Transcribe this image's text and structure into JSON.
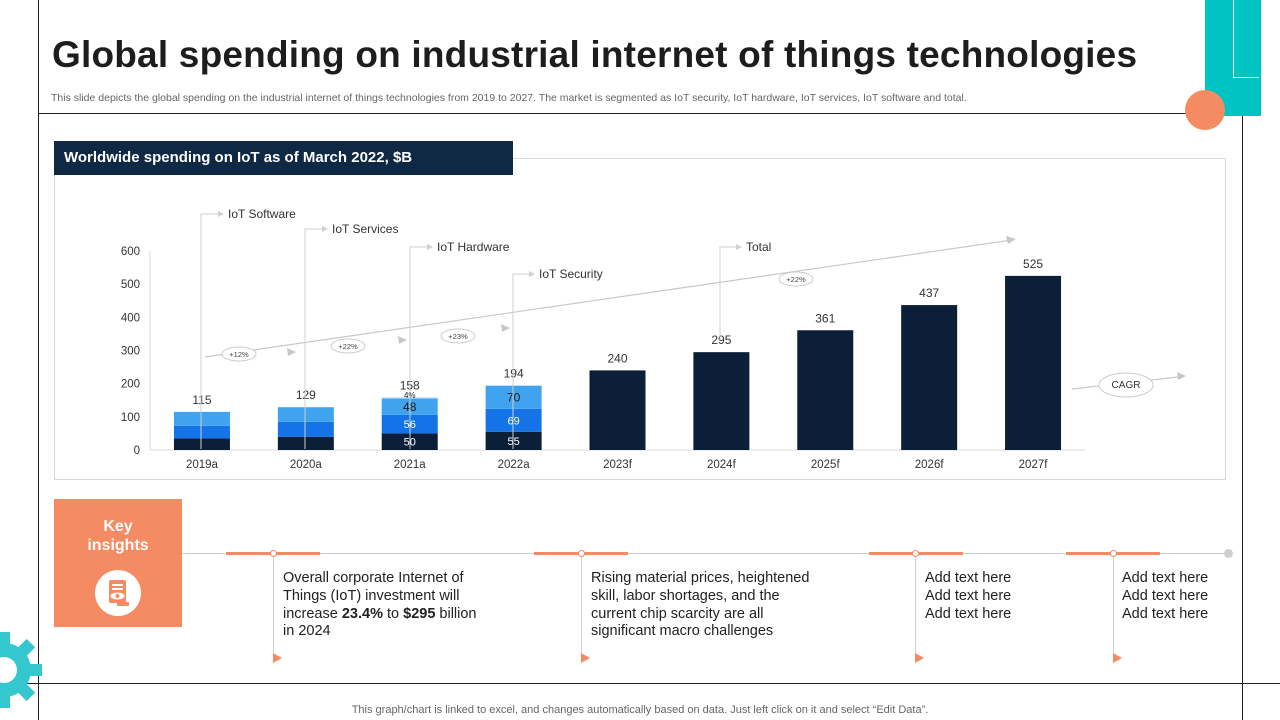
{
  "title": "Global spending on industrial internet of things technologies",
  "subtitle": "This slide depicts the global spending on the industrial internet of things technologies from 2019 to 2027. The market is segmented as IoT security, IoT hardware, IoT services, IoT software and total.",
  "chart_header": "Worldwide spending on IoT as of March 2022, $B",
  "chart_data": {
    "type": "bar",
    "title": "Worldwide spending on IoT as of March 2022, $B",
    "categories": [
      "2019a",
      "2020a",
      "2021a",
      "2022a",
      "2023f",
      "2024f",
      "2025f",
      "2026f",
      "2027f"
    ],
    "ylim": [
      0,
      600
    ],
    "yticks": [
      0,
      100,
      200,
      300,
      400,
      500,
      600
    ],
    "totals": [
      115,
      129,
      158,
      194,
      240,
      295,
      361,
      437,
      525
    ],
    "stacked_segments": [
      {
        "security": 35,
        "hardware": 38,
        "services": 42
      },
      {
        "security": 40,
        "hardware": 45,
        "services": 44
      },
      {
        "security": 50,
        "hardware": 56,
        "services": 48,
        "software": 4
      },
      {
        "security": 55,
        "hardware": 69,
        "services": 70,
        "software": 0
      }
    ],
    "inside_labels": {
      "2021a": {
        "security": "50",
        "hardware": "56",
        "services": "48",
        "software": "4%"
      },
      "2022a": {
        "security": "55",
        "hardware": "69",
        "services": "70"
      }
    },
    "series_labels": [
      "IoT Software",
      "IoT Services",
      "IoT Hardware",
      "IoT Security",
      "Total"
    ],
    "growth_labels": [
      "+12%",
      "+22%",
      "+23%",
      "+22%"
    ],
    "cagr_label": "CAGR",
    "colors": {
      "security": "#0b1f38",
      "hardware": "#1473e6",
      "services": "#3fa3f0",
      "software": "#7cc4f7",
      "total": "#0b1f38"
    }
  },
  "key_insights": {
    "title_line1": "Key",
    "title_line2": "insights",
    "icon": "document-eye-icon",
    "items": [
      {
        "pre": "Overall corporate Internet of Things (IoT) investment will increase ",
        "bold1": "23.4%",
        "mid": " to ",
        "bold2": "$295",
        "post": " billion in 2024"
      },
      {
        "text": "Rising material prices, heightened skill, labor shortages, and the current chip scarcity are all significant macro challenges"
      },
      {
        "lines": [
          "Add text here",
          "Add text here",
          "Add text here"
        ]
      },
      {
        "lines": [
          "Add text here",
          "Add text here",
          "Add text here"
        ]
      }
    ]
  },
  "footer": "This graph/chart is linked to excel,  and changes automatically based on data. Just left click on it and select “Edit Data”."
}
